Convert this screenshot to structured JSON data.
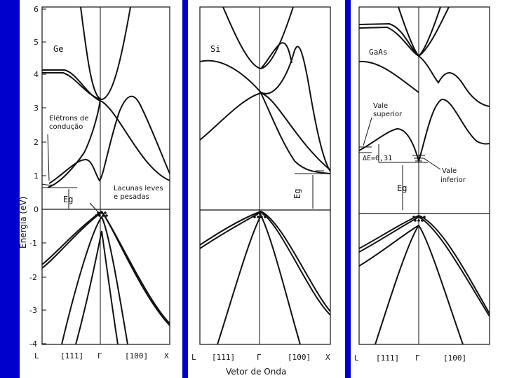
{
  "y_axis_label": "Energia (eV)",
  "x_axis_label": "Vetor de Onda",
  "y_ticks": [
    "6",
    "5",
    "4",
    "3",
    "2",
    "1",
    "0",
    "-1",
    "-2",
    "-3",
    "-4"
  ],
  "panels": [
    {
      "material": "Ge",
      "x_ticks": [
        "L",
        "[111]",
        "Γ",
        "[100]",
        "X"
      ],
      "eg_label": "Eg",
      "annotations": [
        "Elétrons de",
        "condução",
        "Lacunas leves",
        "e pesadas"
      ]
    },
    {
      "material": "Si",
      "x_ticks": [
        "L",
        "[111]",
        "Γ",
        "[100]",
        "X"
      ],
      "eg_label": "Eg",
      "annotations": []
    },
    {
      "material": "GaAs",
      "x_ticks": [
        "L",
        "[111]",
        "Γ",
        "[100]"
      ],
      "eg_label": "Eg",
      "annotations": [
        "Vale",
        "superior",
        "Vale",
        "inferior",
        "ΔE=0,31"
      ]
    }
  ],
  "colors": {
    "background": "#0000cc",
    "panel": "#ffffff",
    "ink": "#111111"
  }
}
